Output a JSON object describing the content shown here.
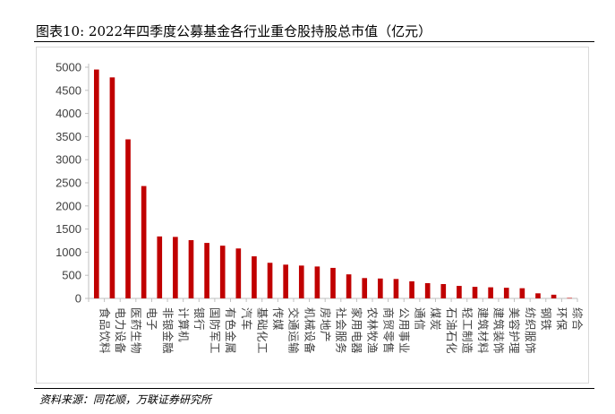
{
  "title": "图表10:  2022年四季度公募基金各行业重仓股持股总市值（亿元）",
  "source": "资料来源：同花顺，万联证券研究所",
  "colors": {
    "bar": "#c00000",
    "axis": "#bfbfbf",
    "text": "#404040"
  },
  "chart_data": {
    "type": "bar",
    "categories": [
      "食品饮料",
      "电力设备",
      "医药生物",
      "电子",
      "非银金融",
      "计算机",
      "银行",
      "国防军工",
      "有色金属",
      "汽车",
      "基础化工",
      "传媒",
      "交通运输",
      "机械设备",
      "房地产",
      "社会服务",
      "家用电器",
      "农林牧渔",
      "商贸零售",
      "公用事业",
      "通信",
      "煤炭",
      "石油石化",
      "轻工制造",
      "建筑材料",
      "建筑装饰",
      "美容护理",
      "纺织服饰",
      "钢铁",
      "环保",
      "综合"
    ],
    "values": [
      4950,
      4780,
      3440,
      2430,
      1340,
      1330,
      1260,
      1200,
      1140,
      1080,
      910,
      770,
      730,
      710,
      690,
      660,
      520,
      440,
      430,
      420,
      370,
      330,
      310,
      270,
      250,
      240,
      230,
      220,
      110,
      80,
      10
    ],
    "title": "",
    "xlabel": "",
    "ylabel": "",
    "ylim": [
      0,
      5000
    ],
    "yticks": [
      "0",
      "500",
      "1000",
      "1500",
      "2000",
      "2500",
      "3000",
      "3500",
      "4000",
      "4500",
      "5000"
    ],
    "grid": false,
    "legend": "none"
  }
}
